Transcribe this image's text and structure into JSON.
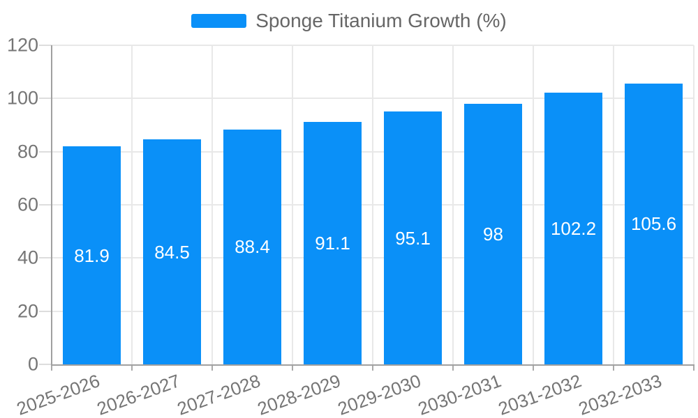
{
  "colors": {
    "bar": "#0a90f8",
    "grid": "#e8e8e8",
    "axis": "#a0a0a0",
    "tick_text": "#757575",
    "legend_text": "#666666",
    "bar_label_text": "#ffffff"
  },
  "legend": {
    "label": "Sponge Titanium Growth (%)"
  },
  "chart_data": {
    "type": "bar",
    "title": "",
    "categories": [
      "2025-2026",
      "2026-2027",
      "2027-2028",
      "2028-2029",
      "2029-2030",
      "2030-2031",
      "2031-2032",
      "2032-2033"
    ],
    "series": [
      {
        "name": "Sponge Titanium Growth (%)",
        "values": [
          81.9,
          84.5,
          88.4,
          91.1,
          95.1,
          98,
          102.2,
          105.6
        ]
      }
    ],
    "xlabel": "",
    "ylabel": "",
    "ylim": [
      0,
      120
    ],
    "y_ticks": [
      0,
      20,
      40,
      60,
      80,
      100,
      120
    ],
    "grid": true,
    "legend_position": "top-center",
    "value_labels": "inside-center",
    "x_tick_rotation_deg": -20
  }
}
